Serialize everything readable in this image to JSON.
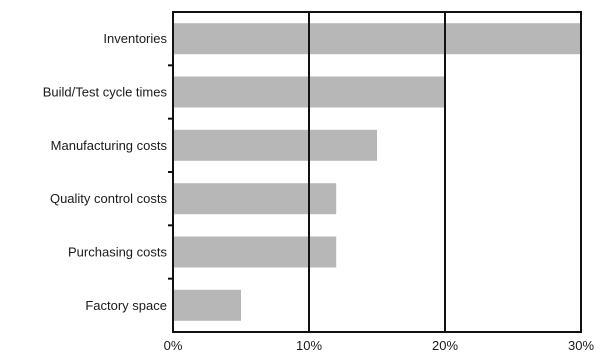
{
  "chart_data": {
    "type": "bar",
    "orientation": "horizontal",
    "categories": [
      "Inventories",
      "Build/Test cycle times",
      "Manufacturing costs",
      "Quality control costs",
      "Purchasing costs",
      "Factory space"
    ],
    "values": [
      30,
      20,
      15,
      12,
      12,
      5
    ],
    "value_unit": "%",
    "xlim": [
      0,
      30
    ],
    "x_ticks": [
      0,
      10,
      20,
      30
    ],
    "x_tick_labels": [
      "0%",
      "10%",
      "20%",
      "30%"
    ],
    "grid": "vertical lines at 10% and 20%",
    "title": "",
    "xlabel": "",
    "ylabel": "",
    "colors": {
      "bar": "#b7b7b7",
      "frame": "#111111",
      "gridline": "#111111",
      "text": "#1a1a1a",
      "background": "#ffffff"
    }
  }
}
